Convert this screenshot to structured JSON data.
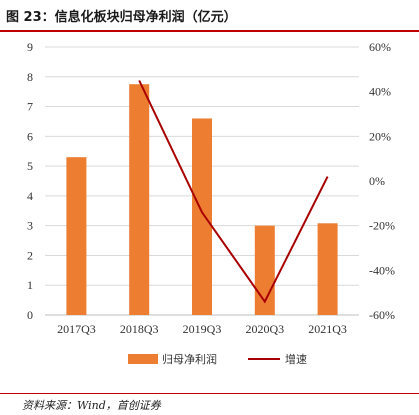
{
  "figure": {
    "title": "图 23：信息化板块归母净利润（亿元）",
    "source": "资料来源：Wind，首创证券"
  },
  "colors": {
    "bar": "#ed7d31",
    "line": "#a80000",
    "rule": "#c00000",
    "grid": "#d9d9d9"
  },
  "chart_data": {
    "type": "bar",
    "categories": [
      "2017Q3",
      "2018Q3",
      "2019Q3",
      "2020Q3",
      "2021Q3"
    ],
    "series": [
      {
        "name": "归母净利润",
        "type": "bar",
        "axis": "left",
        "values": [
          5.3,
          7.75,
          6.6,
          3.0,
          3.08
        ]
      },
      {
        "name": "增速",
        "type": "line",
        "axis": "right",
        "values": [
          null,
          45,
          -14,
          -54,
          2
        ]
      }
    ],
    "ylim": [
      0,
      9
    ],
    "yticks": [
      "0",
      "1",
      "2",
      "3",
      "4",
      "5",
      "6",
      "7",
      "8",
      "9"
    ],
    "y2lim": [
      -60,
      60
    ],
    "y2ticks": [
      "-60%",
      "-40%",
      "-20%",
      "0%",
      "20%",
      "40%",
      "60%"
    ],
    "grid": true,
    "legend": "bottom"
  }
}
